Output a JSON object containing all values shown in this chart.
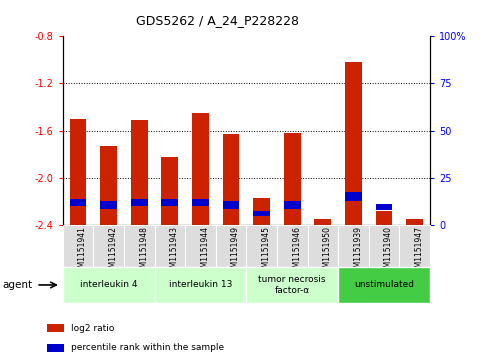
{
  "title": "GDS5262 / A_24_P228228",
  "samples": [
    "GSM1151941",
    "GSM1151942",
    "GSM1151948",
    "GSM1151943",
    "GSM1151944",
    "GSM1151949",
    "GSM1151945",
    "GSM1151946",
    "GSM1151950",
    "GSM1151939",
    "GSM1151940",
    "GSM1151947"
  ],
  "log2_ratio": [
    -1.5,
    -1.73,
    -1.51,
    -1.82,
    -1.45,
    -1.63,
    -2.17,
    -1.62,
    -2.35,
    -1.02,
    -2.28,
    -2.35
  ],
  "blue_tops": [
    -2.18,
    -2.2,
    -2.18,
    -2.18,
    -2.18,
    -2.2,
    -2.28,
    -2.2,
    -2.38,
    -2.12,
    -2.22,
    -2.38
  ],
  "blue_bots": [
    -2.24,
    -2.26,
    -2.24,
    -2.24,
    -2.24,
    -2.26,
    -2.32,
    -2.26,
    -2.38,
    -2.2,
    -2.27,
    -2.38
  ],
  "groups": [
    {
      "label": "interleukin 4",
      "start": 0,
      "end": 3,
      "color": "#ccffcc"
    },
    {
      "label": "interleukin 13",
      "start": 3,
      "end": 6,
      "color": "#ccffcc"
    },
    {
      "label": "tumor necrosis\nfactor-α",
      "start": 6,
      "end": 9,
      "color": "#ccffcc"
    },
    {
      "label": "unstimulated",
      "start": 9,
      "end": 12,
      "color": "#44cc44"
    }
  ],
  "ylim": [
    -2.4,
    -0.8
  ],
  "yticks_left": [
    -2.4,
    -2.0,
    -1.6,
    -1.2,
    -0.8
  ],
  "yticks_right": [
    0,
    25,
    50,
    75,
    100
  ],
  "grid_lines": [
    -2.0,
    -1.6,
    -1.2
  ],
  "bar_color": "#cc2200",
  "blue_color": "#0000cc",
  "bg_color": "#ffffff",
  "bar_width": 0.55,
  "legend_items": [
    {
      "color": "#cc2200",
      "label": "log2 ratio"
    },
    {
      "color": "#0000cc",
      "label": "percentile rank within the sample"
    }
  ]
}
